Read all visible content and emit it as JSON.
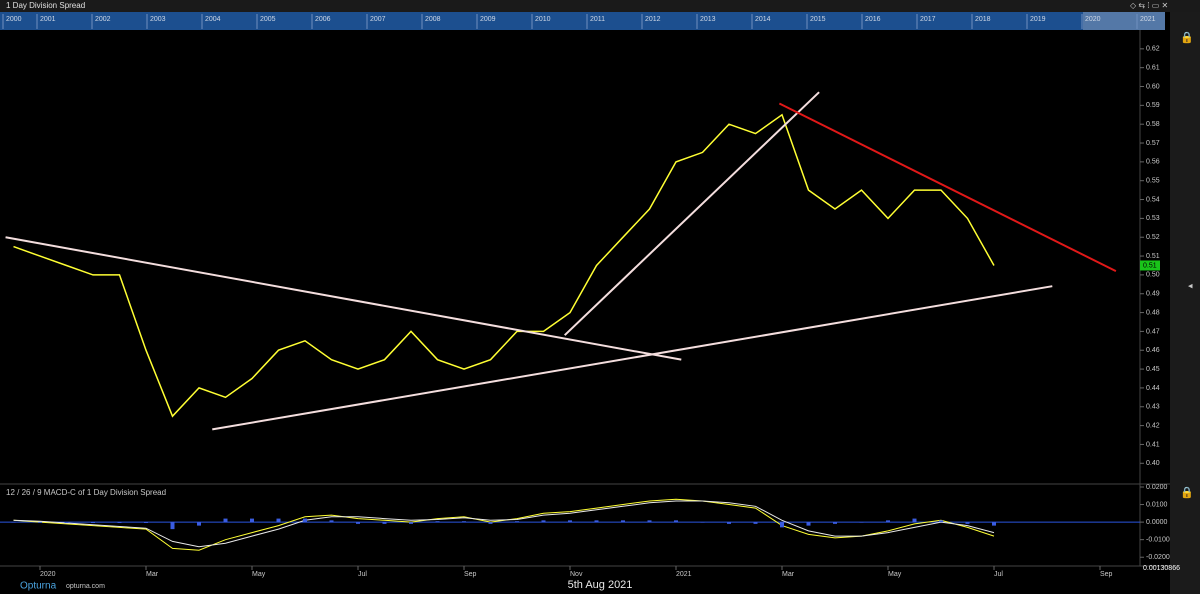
{
  "chart_data": [
    {
      "type": "line",
      "title": "1 Day Division Spread",
      "categories": [
        null,
        "2020",
        null,
        null,
        null,
        "Mar",
        null,
        null,
        null,
        "May",
        null,
        null,
        null,
        "Jul",
        null,
        null,
        null,
        "Sep",
        null,
        null,
        null,
        "Nov",
        null,
        null,
        null,
        "2021",
        null,
        null,
        null,
        "Mar",
        null,
        null,
        null,
        "May",
        null,
        null,
        null,
        "Jul",
        null,
        null,
        null,
        "Sep",
        null
      ],
      "series": [
        {
          "name": "1 Day Division Spread",
          "color": "#ffff33",
          "values": [
            0.515,
            0.51,
            0.505,
            0.5,
            0.5,
            0.46,
            0.425,
            0.44,
            0.435,
            0.445,
            0.46,
            0.465,
            0.455,
            0.45,
            0.455,
            0.47,
            0.455,
            0.45,
            0.455,
            0.47,
            0.47,
            0.48,
            0.505,
            0.52,
            0.535,
            0.56,
            0.565,
            0.58,
            0.575,
            0.585,
            0.545,
            0.535,
            0.545,
            0.53,
            0.545,
            0.545,
            0.53,
            0.505,
            null,
            null,
            null,
            null,
            null
          ],
          "last_value_label": "0.51"
        }
      ],
      "trendlines": [
        {
          "color": "#f4dede",
          "x": [
            -0.3,
            25.2
          ],
          "y": [
            0.52,
            0.455
          ]
        },
        {
          "color": "#f4dede",
          "x": [
            7.5,
            39.2
          ],
          "y": [
            0.418,
            0.494
          ]
        },
        {
          "color": "#f4dede",
          "x": [
            20.8,
            30.4
          ],
          "y": [
            0.468,
            0.597
          ]
        },
        {
          "color": "#e01818",
          "x": [
            28.9,
            41.6
          ],
          "y": [
            0.591,
            0.502
          ]
        }
      ],
      "ylim": [
        0.389,
        0.63
      ],
      "yticks": [
        {
          "value": 0.4,
          "label": "0.40"
        },
        0.41,
        0.42,
        0.43,
        0.44,
        0.45,
        0.46,
        0.47,
        0.48,
        0.49,
        {
          "value": 0.5,
          "label": "0.50"
        },
        0.51,
        0.52,
        0.53,
        0.54,
        0.55,
        0.56,
        0.57,
        0.58,
        0.59,
        {
          "value": 0.6,
          "label": "0.60"
        },
        0.61,
        0.62
      ],
      "navigator_years": [
        "2000",
        "2001",
        "2002",
        "2003",
        "2004",
        "2005",
        "2006",
        "2007",
        "2008",
        "2009",
        "2010",
        "2011",
        "2012",
        "2013",
        "2014",
        "2015",
        "2016",
        "2017",
        "2018",
        "2019",
        "2020",
        "2021"
      ]
    },
    {
      "type": "macd",
      "title": "12 / 26 / 9 MACD-C of 1 Day Division Spread",
      "series": [
        {
          "name": "MACD",
          "color": "#ffff33",
          "values": [
            0.001,
            0,
            -0.001,
            -0.002,
            -0.003,
            -0.004,
            -0.015,
            -0.016,
            -0.01,
            -0.006,
            -0.002,
            0.003,
            0.004,
            0.002,
            0.001,
            0,
            0.002,
            0.003,
            0,
            0.002,
            0.005,
            0.006,
            0.008,
            0.01,
            0.012,
            0.013,
            0.012,
            0.01,
            0.008,
            -0.002,
            -0.007,
            -0.009,
            -0.008,
            -0.005,
            -0.001,
            0.001,
            -0.003,
            -0.008,
            null,
            null,
            null,
            null,
            null
          ]
        },
        {
          "name": "Signal",
          "color": "#e8e8e8",
          "values": [
            0.001,
            0.0005,
            -0.0005,
            -0.0015,
            -0.0025,
            -0.0035,
            -0.011,
            -0.014,
            -0.012,
            -0.008,
            -0.004,
            0.001,
            0.003,
            0.003,
            0.002,
            0.001,
            0.0015,
            0.0025,
            0.001,
            0.0015,
            0.004,
            0.005,
            0.007,
            0.009,
            0.011,
            0.012,
            0.012,
            0.011,
            0.009,
            0.001,
            -0.005,
            -0.008,
            -0.008,
            -0.006,
            -0.003,
            0,
            -0.002,
            -0.006,
            null,
            null,
            null,
            null,
            null
          ]
        },
        {
          "name": "Histogram",
          "color": "#3a5ce0",
          "values": [
            0,
            -0.0005,
            -0.0005,
            -0.0005,
            -0.0005,
            -0.0005,
            -0.004,
            -0.002,
            0.002,
            0.002,
            0.002,
            0.002,
            0.001,
            -0.001,
            -0.001,
            -0.001,
            0.0005,
            0.0005,
            -0.001,
            0.0005,
            0.001,
            0.001,
            0.001,
            0.001,
            0.001,
            0.001,
            0,
            -0.001,
            -0.001,
            -0.003,
            -0.002,
            -0.001,
            0,
            0.001,
            0.002,
            0.001,
            -0.001,
            -0.002,
            null,
            null,
            null,
            null,
            null
          ]
        }
      ],
      "ylim": [
        -0.025,
        0.0217
      ],
      "yticks": [
        {
          "value": -0.02,
          "label": "-0.0200"
        },
        {
          "value": -0.01,
          "label": "-0.0100"
        },
        {
          "value": 0,
          "label": "0.0000"
        },
        {
          "value": 0.01,
          "label": "0.0100"
        },
        {
          "value": 0.02,
          "label": "0.0200"
        }
      ],
      "scale_label": "0.00130866"
    }
  ],
  "footer": {
    "brand": "Opturna",
    "site": "opturna.com",
    "date": "5th Aug 2021"
  }
}
